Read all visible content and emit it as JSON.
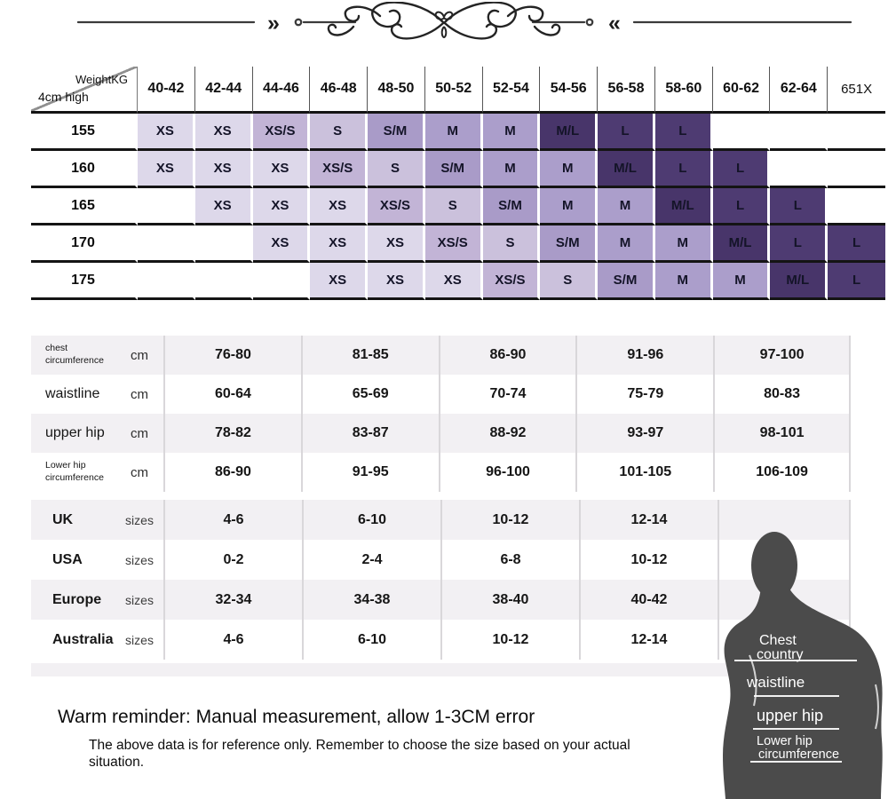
{
  "size_chart": {
    "corner": {
      "top": "WeightKG",
      "bottom": "4cm high"
    },
    "weight_columns": [
      "40-42",
      "42-44",
      "44-46",
      "46-48",
      "48-50",
      "50-52",
      "52-54",
      "54-56",
      "56-58",
      "58-60",
      "60-62",
      "62-64",
      "651X"
    ],
    "height_rows": [
      {
        "height": "155",
        "cells": [
          "XS",
          "XS",
          "XS/S",
          "S",
          "S/M",
          "M",
          "M",
          "M/L",
          "L",
          "L",
          "",
          "",
          ""
        ]
      },
      {
        "height": "160",
        "cells": [
          "XS",
          "XS",
          "XS",
          "XS/S",
          "S",
          "S/M",
          "M",
          "M",
          "M/L",
          "L",
          "L",
          "",
          ""
        ]
      },
      {
        "height": "165",
        "cells": [
          "",
          "XS",
          "XS",
          "XS",
          "XS/S",
          "S",
          "S/M",
          "M",
          "M",
          "M/L",
          "L",
          "L",
          ""
        ]
      },
      {
        "height": "170",
        "cells": [
          "",
          "",
          "XS",
          "XS",
          "XS",
          "XS/S",
          "S",
          "S/M",
          "M",
          "M",
          "M/L",
          "L",
          "L"
        ]
      },
      {
        "height": "175",
        "cells": [
          "",
          "",
          "",
          "XS",
          "XS",
          "XS",
          "XS/S",
          "S",
          "S/M",
          "M",
          "M",
          "M/L",
          "L"
        ]
      }
    ],
    "size_colors": {
      "XS": "#ddd8ea",
      "XS/S": "#c2b4d6",
      "S": "#cbc1dc",
      "S/M": "#a99bc8",
      "M": "#ab9ecb",
      "M/L": "#48356a",
      "L": "#4e3b72"
    }
  },
  "measurements": {
    "rows": [
      {
        "label": "chest circumference",
        "unit": "cm",
        "small": true,
        "values": [
          "76-80",
          "81-85",
          "86-90",
          "91-96",
          "97-100"
        ]
      },
      {
        "label": "waistline",
        "unit": "cm",
        "small": false,
        "values": [
          "60-64",
          "65-69",
          "70-74",
          "75-79",
          "80-83"
        ]
      },
      {
        "label": "upper hip",
        "unit": "cm",
        "small": false,
        "values": [
          "78-82",
          "83-87",
          "88-92",
          "93-97",
          "98-101"
        ]
      },
      {
        "label": "Lower hip circumference",
        "unit": "cm",
        "small": true,
        "values": [
          "86-90",
          "91-95",
          "96-100",
          "101-105",
          "106-109"
        ]
      }
    ]
  },
  "country_sizes": {
    "rows": [
      {
        "label": "UK",
        "unit": "sizes",
        "values": [
          "4-6",
          "6-10",
          "10-12",
          "12-14"
        ]
      },
      {
        "label": "USA",
        "unit": "sizes",
        "values": [
          "0-2",
          "2-4",
          "6-8",
          "10-12"
        ]
      },
      {
        "label": "Europe",
        "unit": "sizes",
        "values": [
          "32-34",
          "34-38",
          "38-40",
          "40-42"
        ]
      },
      {
        "label": "Australia",
        "unit": "sizes",
        "values": [
          "4-6",
          "6-10",
          "10-12",
          "12-14"
        ]
      }
    ]
  },
  "figure": {
    "labels": {
      "chest_line1": "Chest",
      "chest_line2": "country",
      "waist": "waistline",
      "upper_hip": "upper hip",
      "lower_hip_line1": "Lower hip",
      "lower_hip_line2": "circumference"
    },
    "silhouette_color": "#4b4b4b"
  },
  "footer": {
    "reminder": "Warm reminder: Manual measurement, allow 1-3CM error",
    "note": "The above data is for reference only. Remember to choose the size based on your actual situation."
  },
  "theme": {
    "stripe_color": "#f2f0f3",
    "separator_color": "#d9d7da",
    "row_border_color": "#141414"
  }
}
